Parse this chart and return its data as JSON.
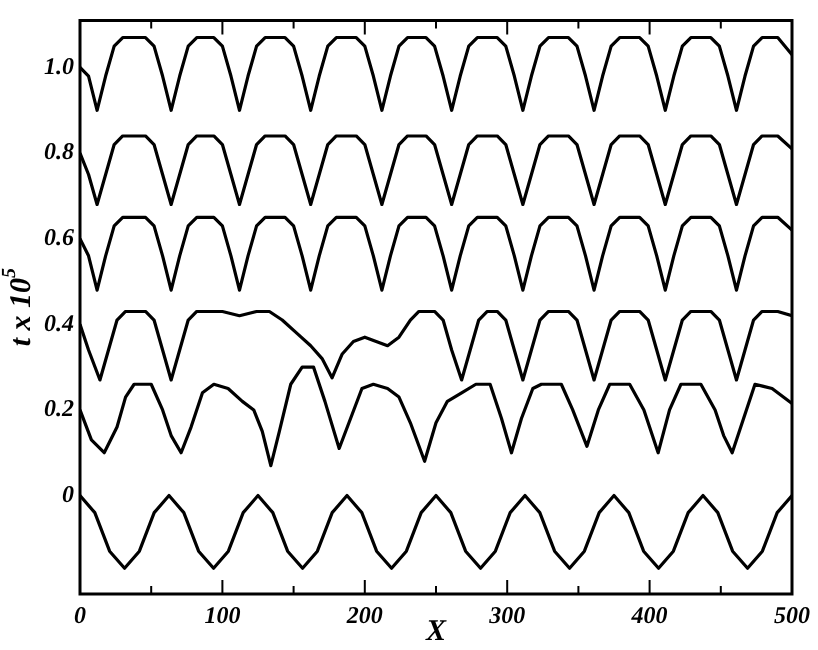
{
  "chart_data": {
    "type": "line",
    "xlabel": "X",
    "ylabel": "t x 10$^{5}$",
    "xlim": [
      0,
      500
    ],
    "ylim": [
      -0.23,
      1.11
    ],
    "xticks": [
      0,
      {
        "value": 50,
        "label": null
      },
      100,
      {
        "value": 150,
        "label": null
      },
      200,
      {
        "value": 250,
        "label": null
      },
      300,
      {
        "value": 350,
        "label": null
      },
      400,
      {
        "value": 450,
        "label": null
      },
      500
    ],
    "yticks": [
      0,
      0.2,
      0.4,
      0.6,
      0.8,
      {
        "value": 1,
        "label": "1.0"
      }
    ],
    "grid": false,
    "legend": false,
    "marker": "none",
    "line_style": "solid",
    "x": [
      0,
      6,
      12,
      18,
      24,
      30,
      46,
      52,
      58,
      64,
      70,
      76,
      82,
      94,
      100,
      106,
      112,
      118,
      124,
      130,
      144,
      150,
      156,
      162,
      168,
      174,
      180,
      194,
      200,
      206,
      212,
      218,
      224,
      230,
      243,
      249,
      255,
      261,
      267,
      273,
      279,
      293,
      299,
      305,
      311,
      317,
      323,
      329,
      343,
      349,
      355,
      361,
      367,
      373,
      379,
      393,
      399,
      405,
      411,
      417,
      423,
      429,
      443,
      449,
      455,
      461,
      467,
      473,
      479,
      490,
      500
    ],
    "series": [
      {
        "color": "#000000",
        "values": [
          1.0,
          0.98,
          0.9,
          0.98,
          1.05,
          1.07,
          1.07,
          1.05,
          0.98,
          0.9,
          0.98,
          1.05,
          1.07,
          1.07,
          1.05,
          0.98,
          0.9,
          0.98,
          1.05,
          1.07,
          1.07,
          1.05,
          0.98,
          0.9,
          0.98,
          1.05,
          1.07,
          1.07,
          1.05,
          0.98,
          0.9,
          0.98,
          1.05,
          1.07,
          1.07,
          1.05,
          0.98,
          0.9,
          0.98,
          1.05,
          1.07,
          1.07,
          1.05,
          0.98,
          0.9,
          0.98,
          1.05,
          1.07,
          1.07,
          1.05,
          0.98,
          0.9,
          0.98,
          1.05,
          1.07,
          1.07,
          1.05,
          0.98,
          0.9,
          0.98,
          1.05,
          1.07,
          1.07,
          1.05,
          0.98,
          0.9,
          0.98,
          1.05,
          1.07,
          1.07,
          1.03
        ]
      },
      {
        "color": "#000000",
        "values": [
          0.8,
          0.75,
          0.68,
          0.75,
          0.82,
          0.84,
          0.84,
          0.82,
          0.75,
          0.68,
          0.75,
          0.82,
          0.84,
          0.84,
          0.82,
          0.75,
          0.68,
          0.75,
          0.82,
          0.84,
          0.84,
          0.82,
          0.75,
          0.68,
          0.75,
          0.82,
          0.84,
          0.84,
          0.82,
          0.75,
          0.68,
          0.75,
          0.82,
          0.84,
          0.84,
          0.82,
          0.75,
          0.68,
          0.75,
          0.82,
          0.84,
          0.84,
          0.82,
          0.75,
          0.68,
          0.75,
          0.82,
          0.84,
          0.84,
          0.82,
          0.75,
          0.68,
          0.75,
          0.82,
          0.84,
          0.84,
          0.82,
          0.75,
          0.68,
          0.75,
          0.82,
          0.84,
          0.84,
          0.82,
          0.75,
          0.68,
          0.75,
          0.82,
          0.84,
          0.84,
          0.81
        ]
      },
      {
        "color": "#000000",
        "values": [
          0.6,
          0.56,
          0.48,
          0.56,
          0.63,
          0.65,
          0.65,
          0.63,
          0.56,
          0.48,
          0.56,
          0.63,
          0.65,
          0.65,
          0.63,
          0.56,
          0.48,
          0.56,
          0.63,
          0.65,
          0.65,
          0.63,
          0.56,
          0.48,
          0.56,
          0.63,
          0.65,
          0.65,
          0.63,
          0.56,
          0.48,
          0.56,
          0.63,
          0.65,
          0.65,
          0.63,
          0.56,
          0.48,
          0.56,
          0.63,
          0.65,
          0.65,
          0.63,
          0.56,
          0.48,
          0.56,
          0.63,
          0.65,
          0.65,
          0.63,
          0.56,
          0.48,
          0.56,
          0.63,
          0.65,
          0.65,
          0.63,
          0.56,
          0.48,
          0.56,
          0.63,
          0.65,
          0.65,
          0.63,
          0.56,
          0.48,
          0.56,
          0.63,
          0.65,
          0.65,
          0.62
        ]
      },
      {
        "color": "#000000",
        "x": [
          0,
          6,
          14,
          20,
          26,
          32,
          46,
          52,
          58,
          64,
          70,
          76,
          82,
          100,
          112,
          124,
          133,
          142,
          152,
          162,
          170,
          177,
          184,
          192,
          200,
          208,
          216,
          224,
          232,
          238,
          249,
          255,
          261,
          268,
          274,
          280,
          286,
          293,
          299,
          305,
          311,
          317,
          323,
          329,
          343,
          349,
          355,
          361,
          367,
          373,
          379,
          393,
          399,
          405,
          411,
          417,
          423,
          429,
          443,
          449,
          455,
          461,
          467,
          473,
          479,
          490,
          500
        ],
        "values": [
          0.4,
          0.34,
          0.27,
          0.34,
          0.41,
          0.43,
          0.43,
          0.41,
          0.34,
          0.27,
          0.34,
          0.41,
          0.43,
          0.43,
          0.42,
          0.43,
          0.43,
          0.41,
          0.38,
          0.35,
          0.32,
          0.275,
          0.33,
          0.36,
          0.37,
          0.36,
          0.35,
          0.37,
          0.41,
          0.43,
          0.43,
          0.41,
          0.34,
          0.27,
          0.34,
          0.41,
          0.43,
          0.43,
          0.41,
          0.34,
          0.27,
          0.34,
          0.41,
          0.43,
          0.43,
          0.41,
          0.34,
          0.27,
          0.34,
          0.41,
          0.43,
          0.43,
          0.41,
          0.34,
          0.27,
          0.34,
          0.41,
          0.43,
          0.43,
          0.41,
          0.34,
          0.27,
          0.34,
          0.41,
          0.43,
          0.43,
          0.42
        ]
      },
      {
        "color": "#000000",
        "x": [
          0,
          8,
          17,
          26,
          32,
          38,
          50,
          58,
          64,
          71,
          78,
          86,
          94,
          104,
          114,
          122,
          128,
          134,
          140,
          148,
          156,
          164,
          172,
          182,
          190,
          198,
          206,
          216,
          224,
          232,
          242,
          250,
          258,
          268,
          278,
          288,
          296,
          303,
          310,
          318,
          324,
          338,
          346,
          356,
          364,
          372,
          386,
          396,
          406,
          414,
          422,
          436,
          446,
          452,
          458,
          466,
          474,
          486,
          500
        ],
        "values": [
          0.2,
          0.13,
          0.1,
          0.16,
          0.23,
          0.26,
          0.26,
          0.2,
          0.14,
          0.1,
          0.16,
          0.24,
          0.26,
          0.25,
          0.22,
          0.2,
          0.15,
          0.07,
          0.15,
          0.26,
          0.3,
          0.3,
          0.22,
          0.11,
          0.18,
          0.25,
          0.26,
          0.25,
          0.23,
          0.17,
          0.08,
          0.17,
          0.22,
          0.24,
          0.26,
          0.26,
          0.18,
          0.1,
          0.18,
          0.25,
          0.26,
          0.26,
          0.2,
          0.115,
          0.2,
          0.26,
          0.26,
          0.2,
          0.1,
          0.2,
          0.26,
          0.26,
          0.2,
          0.14,
          0.1,
          0.18,
          0.26,
          0.25,
          0.215
        ]
      },
      {
        "color": "#000000",
        "x": [
          0,
          10.4,
          20.8,
          31.3,
          41.7,
          52.1,
          62.5,
          72.9,
          83.3,
          93.8,
          104.2,
          114.6,
          125,
          135.4,
          145.8,
          156.3,
          166.7,
          177.1,
          187.5,
          197.9,
          208.3,
          218.8,
          229.2,
          239.6,
          250,
          260.4,
          270.8,
          281.3,
          291.7,
          302.1,
          312.5,
          322.9,
          333.3,
          343.8,
          354.2,
          364.6,
          375,
          385.4,
          395.8,
          406.3,
          416.7,
          427.1,
          437.5,
          447.9,
          458.3,
          468.8,
          479.2,
          489.6,
          500
        ],
        "values": [
          0,
          -0.04,
          -0.13,
          -0.17,
          -0.13,
          -0.04,
          0,
          -0.04,
          -0.13,
          -0.17,
          -0.13,
          -0.04,
          0,
          -0.04,
          -0.13,
          -0.17,
          -0.13,
          -0.04,
          0,
          -0.04,
          -0.13,
          -0.17,
          -0.13,
          -0.04,
          0,
          -0.04,
          -0.13,
          -0.17,
          -0.13,
          -0.04,
          0,
          -0.04,
          -0.13,
          -0.17,
          -0.13,
          -0.04,
          0,
          -0.04,
          -0.13,
          -0.17,
          -0.13,
          -0.04,
          0,
          -0.04,
          -0.13,
          -0.17,
          -0.13,
          -0.04,
          0
        ]
      }
    ]
  }
}
